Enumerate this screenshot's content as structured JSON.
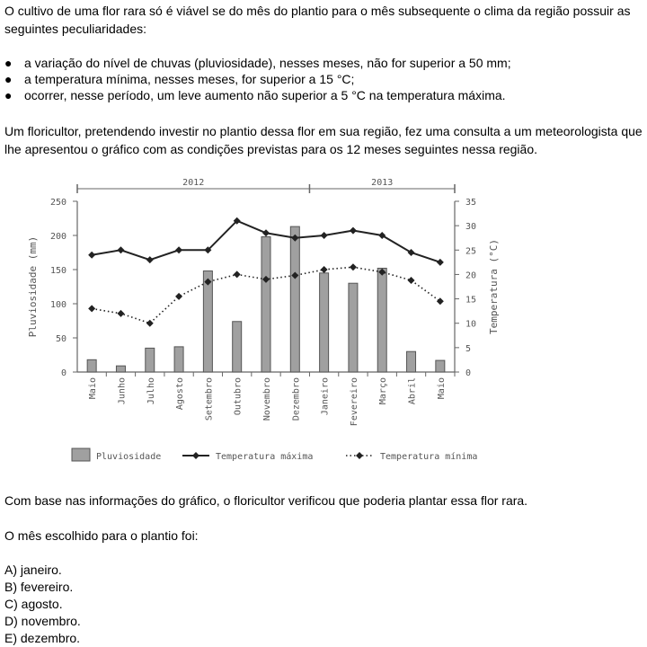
{
  "intro": "O cultivo de uma flor rara só é viável se do mês do plantio para o mês subsequente o clima da região possuir as seguintes peculiaridades:",
  "conditions": [
    "a variação do nível de chuvas (pluviosidade), nesses meses, não for superior a 50 mm;",
    "a temperatura mínima, nesses meses, for superior a 15 °C;",
    "ocorrer, nesse período, um leve aumento não superior a 5 °C na temperatura máxima."
  ],
  "context": "Um floricultor, pretendendo investir no plantio dessa flor em sua região, fez uma consulta a um meteorologista que lhe apresentou o gráfico com as condições previstas para os 12 meses seguintes nessa região.",
  "conclusion": "Com base nas informações do gráfico, o floricultor verificou que poderia plantar essa flor rara.",
  "question": "O mês escolhido para o plantio foi:",
  "options": [
    "A) janeiro.",
    "B) fevereiro.",
    "C) agosto.",
    "D) novembro.",
    "E) dezembro."
  ],
  "colors": {
    "bar_fill": "#a0a0a0",
    "bar_stroke": "#555555",
    "line": "#222222",
    "axis": "#666666"
  },
  "chart_data": {
    "type": "bar",
    "categories": [
      "Maio",
      "Junho",
      "Julho",
      "Agosto",
      "Setembro",
      "Outubro",
      "Novembro",
      "Dezembro",
      "Janeiro",
      "Fevereiro",
      "Março",
      "Abril",
      "Maio"
    ],
    "year_labels": [
      {
        "label": "2012",
        "from": 0,
        "to": 7
      },
      {
        "label": "2013",
        "from": 8,
        "to": 12
      }
    ],
    "ylabel_left": "Pluviosidade (mm)",
    "ylabel_right": "Temperatura (°C)",
    "ylim_left": [
      0,
      250
    ],
    "yticks_left": [
      0,
      50,
      100,
      150,
      200,
      250
    ],
    "ylim_right": [
      0,
      35
    ],
    "yticks_right": [
      0,
      5,
      10,
      15,
      20,
      25,
      30,
      35
    ],
    "series": [
      {
        "name": "Pluviosidade",
        "kind": "bar",
        "axis": "left",
        "values": [
          18,
          9,
          35,
          37,
          148,
          74,
          198,
          213,
          145,
          130,
          152,
          30,
          17
        ]
      },
      {
        "name": "Temperatura máxima",
        "kind": "line",
        "axis": "right",
        "values": [
          24,
          25,
          23,
          25,
          25,
          31,
          28.5,
          27.5,
          28,
          29,
          28,
          24.5,
          22.5
        ]
      },
      {
        "name": "Temperatura mínima",
        "kind": "dotted-line",
        "axis": "right",
        "values": [
          13,
          12,
          10,
          15.5,
          18.5,
          20,
          19,
          19.8,
          21,
          21.5,
          20.5,
          18.8,
          14.5
        ]
      }
    ],
    "legend": [
      "Pluviosidade",
      "Temperatura máxima",
      "Temperatura mínima"
    ],
    "legend_position": "bottom",
    "grid": false
  }
}
